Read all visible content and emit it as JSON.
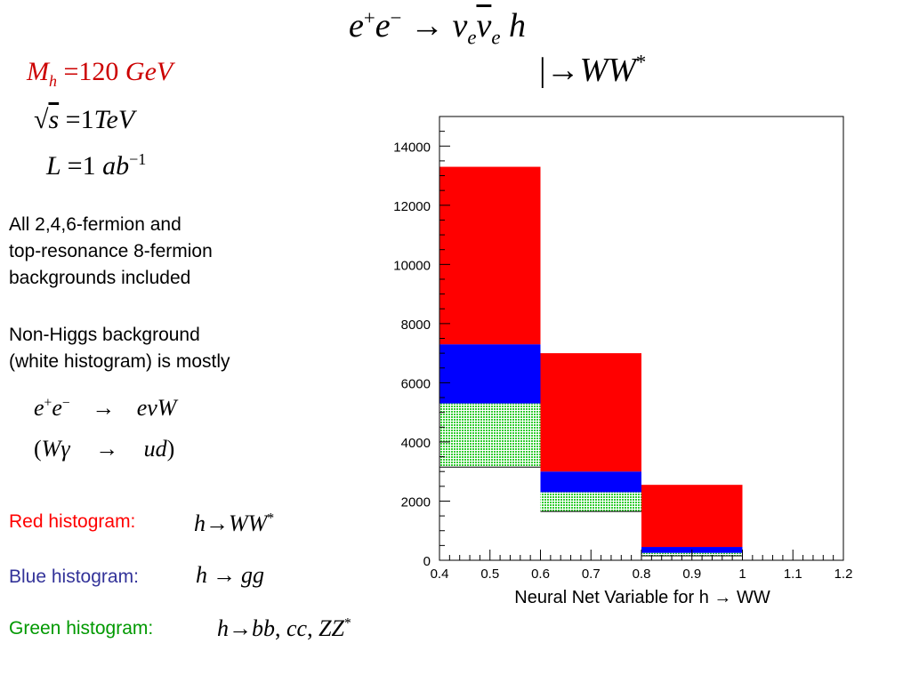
{
  "header": {
    "process_lhs": "e",
    "process_plus": "+",
    "process_e2": "e",
    "process_minus": "−",
    "process_arrow": "→",
    "nu": "ν",
    "nu_sub": "e",
    "nubar": "ν",
    "nubar_sub": "e",
    "higgs": "h",
    "decay_bar": "|",
    "decay_arrow": "→",
    "decay_products": "WW",
    "decay_star": "*"
  },
  "params": {
    "mass": {
      "symbol": "M",
      "sub": "h",
      "eq": "=",
      "value": "120",
      "unit": "GeV"
    },
    "energy": {
      "root": "√",
      "symbol": "s",
      "eq": "=",
      "value": "1",
      "unit": "TeV"
    },
    "lumi": {
      "symbol": "L",
      "eq": "=",
      "value": "1",
      "unit": "ab",
      "exp": "−1"
    }
  },
  "notes": {
    "backgrounds": [
      "All 2,4,6-fermion and",
      "top-resonance 8-fermion",
      "backgrounds included"
    ],
    "nonhiggs": [
      "Non-Higgs background",
      "(white histogram) is mostly"
    ],
    "reaction1": {
      "lhs": "e",
      "plus": "+",
      "e2": "e",
      "minus": "−",
      "arrow": "→",
      "rhs": "eνW"
    },
    "reaction2": {
      "open": "(",
      "lhs": "Wγ",
      "arrow": "→",
      "rhs": "ud",
      "close": ")"
    }
  },
  "legend": {
    "red": {
      "label": "Red histogram:",
      "formula_h": "h",
      "arrow": "→",
      "formula_rhs": "WW",
      "star": "*",
      "color": "#ff0000"
    },
    "blue": {
      "label": "Blue histogram:",
      "formula_h": "h",
      "arrow": "→",
      "formula_rhs": "gg",
      "color": "#333399"
    },
    "green": {
      "label": "Green histogram:",
      "formula_h": "h",
      "arrow": "→",
      "bb": "bb",
      "sep1": ",",
      "cc": "cc",
      "sep2": ",",
      "zz": "ZZ",
      "star": "*",
      "color": "#009900"
    }
  },
  "chart_data": {
    "type": "bar",
    "stacked": true,
    "xlabel": "Neural Net Variable for  h → WW",
    "ylabel": "",
    "xlim": [
      0.4,
      1.2
    ],
    "ylim": [
      0,
      15000
    ],
    "x_ticks": [
      "0.4",
      "0.5",
      "0.6",
      "0.7",
      "0.8",
      "0.9",
      "1",
      "1.1",
      "1.2"
    ],
    "y_ticks": [
      "0",
      "2000",
      "4000",
      "6000",
      "8000",
      "10000",
      "12000",
      "14000"
    ],
    "bins": [
      [
        0.4,
        0.6
      ],
      [
        0.6,
        0.8
      ],
      [
        0.8,
        1.0
      ]
    ],
    "series": [
      {
        "name": "Non-Higgs background",
        "color": "#ffffff",
        "values": [
          3150,
          1650,
          150
        ]
      },
      {
        "name": "h → bb, cc, ZZ*",
        "color": "#44dd44",
        "values": [
          2150,
          650,
          100
        ]
      },
      {
        "name": "h → gg",
        "color": "#0000ff",
        "values": [
          2000,
          700,
          200
        ]
      },
      {
        "name": "h → WW*",
        "color": "#ff0000",
        "values": [
          6000,
          4000,
          2100
        ]
      }
    ]
  }
}
